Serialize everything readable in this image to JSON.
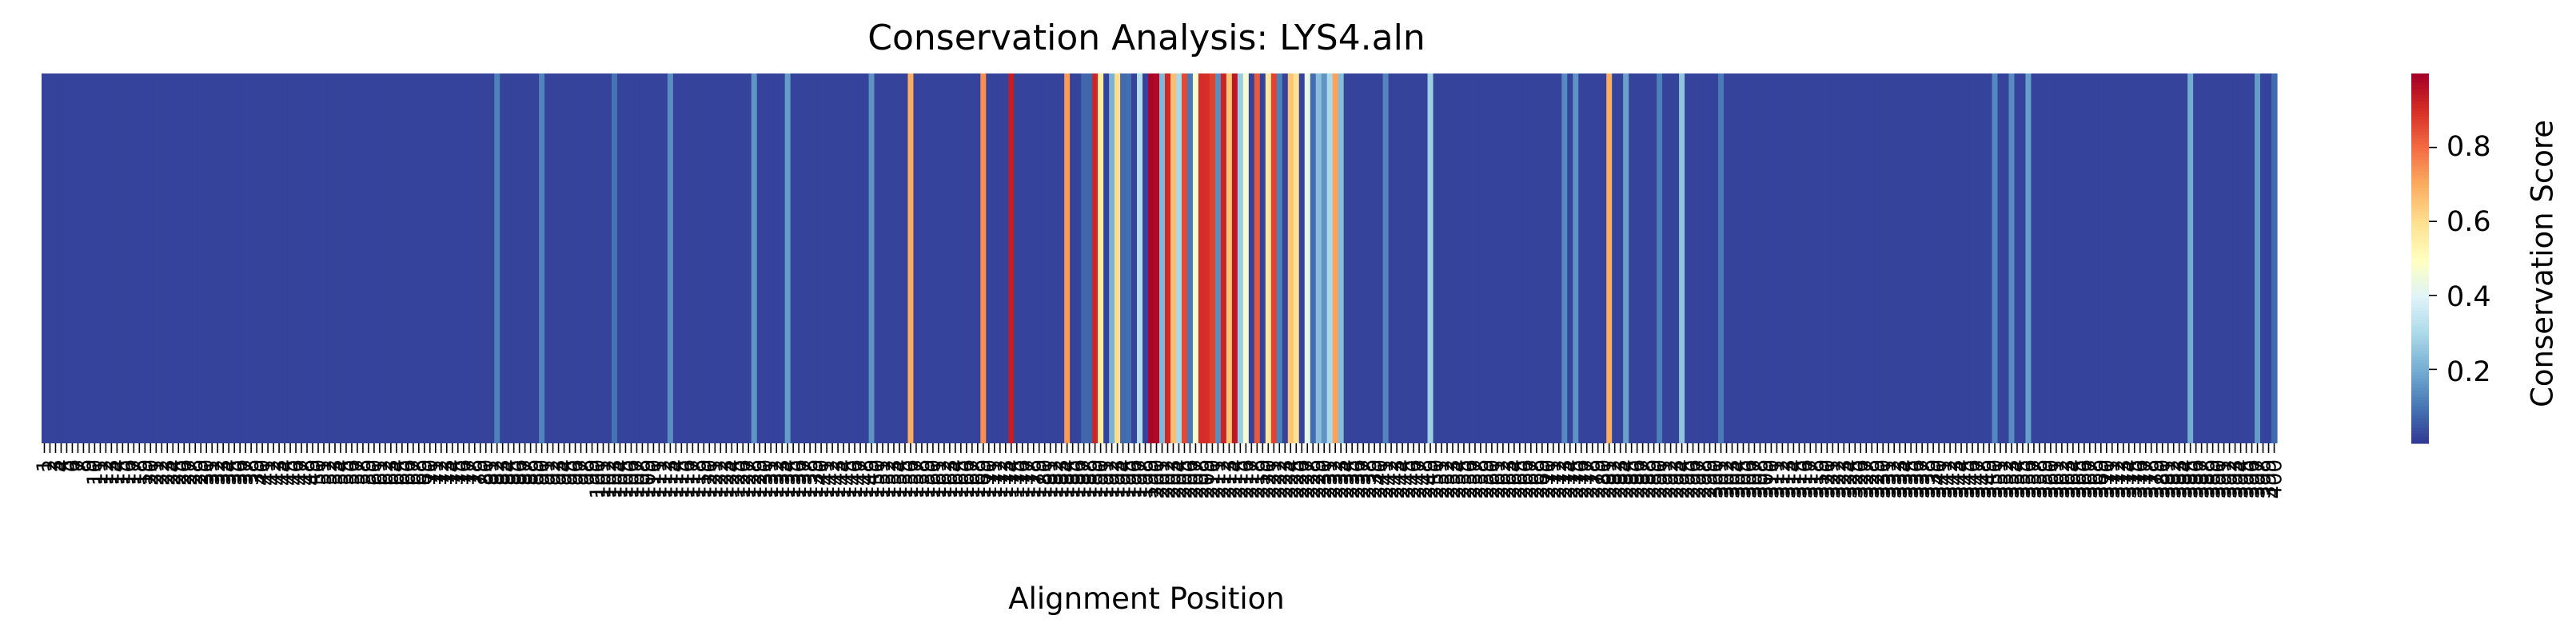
{
  "chart_data": {
    "type": "heatmap",
    "title": "Conservation Analysis: LYS4.aln",
    "xlabel": "Alignment Position",
    "ylabel": "",
    "colorbar_label": "Conservation Score",
    "colorbar_ticks": [
      "0.2",
      "0.4",
      "0.6",
      "0.8"
    ],
    "colorbar_tick_values": [
      0.2,
      0.4,
      0.6,
      0.8
    ],
    "color_range": [
      0.0,
      1.0
    ],
    "colormap": "RdYlBu_r",
    "n_positions": 400,
    "n_rows": 1,
    "baseline_value": 0.02,
    "x_tick_labels_note": "every alignment position 1..N",
    "values": "per-position conservation scores; mostly ~0.02 with high-conservation cluster around positions 188-230"
  }
}
